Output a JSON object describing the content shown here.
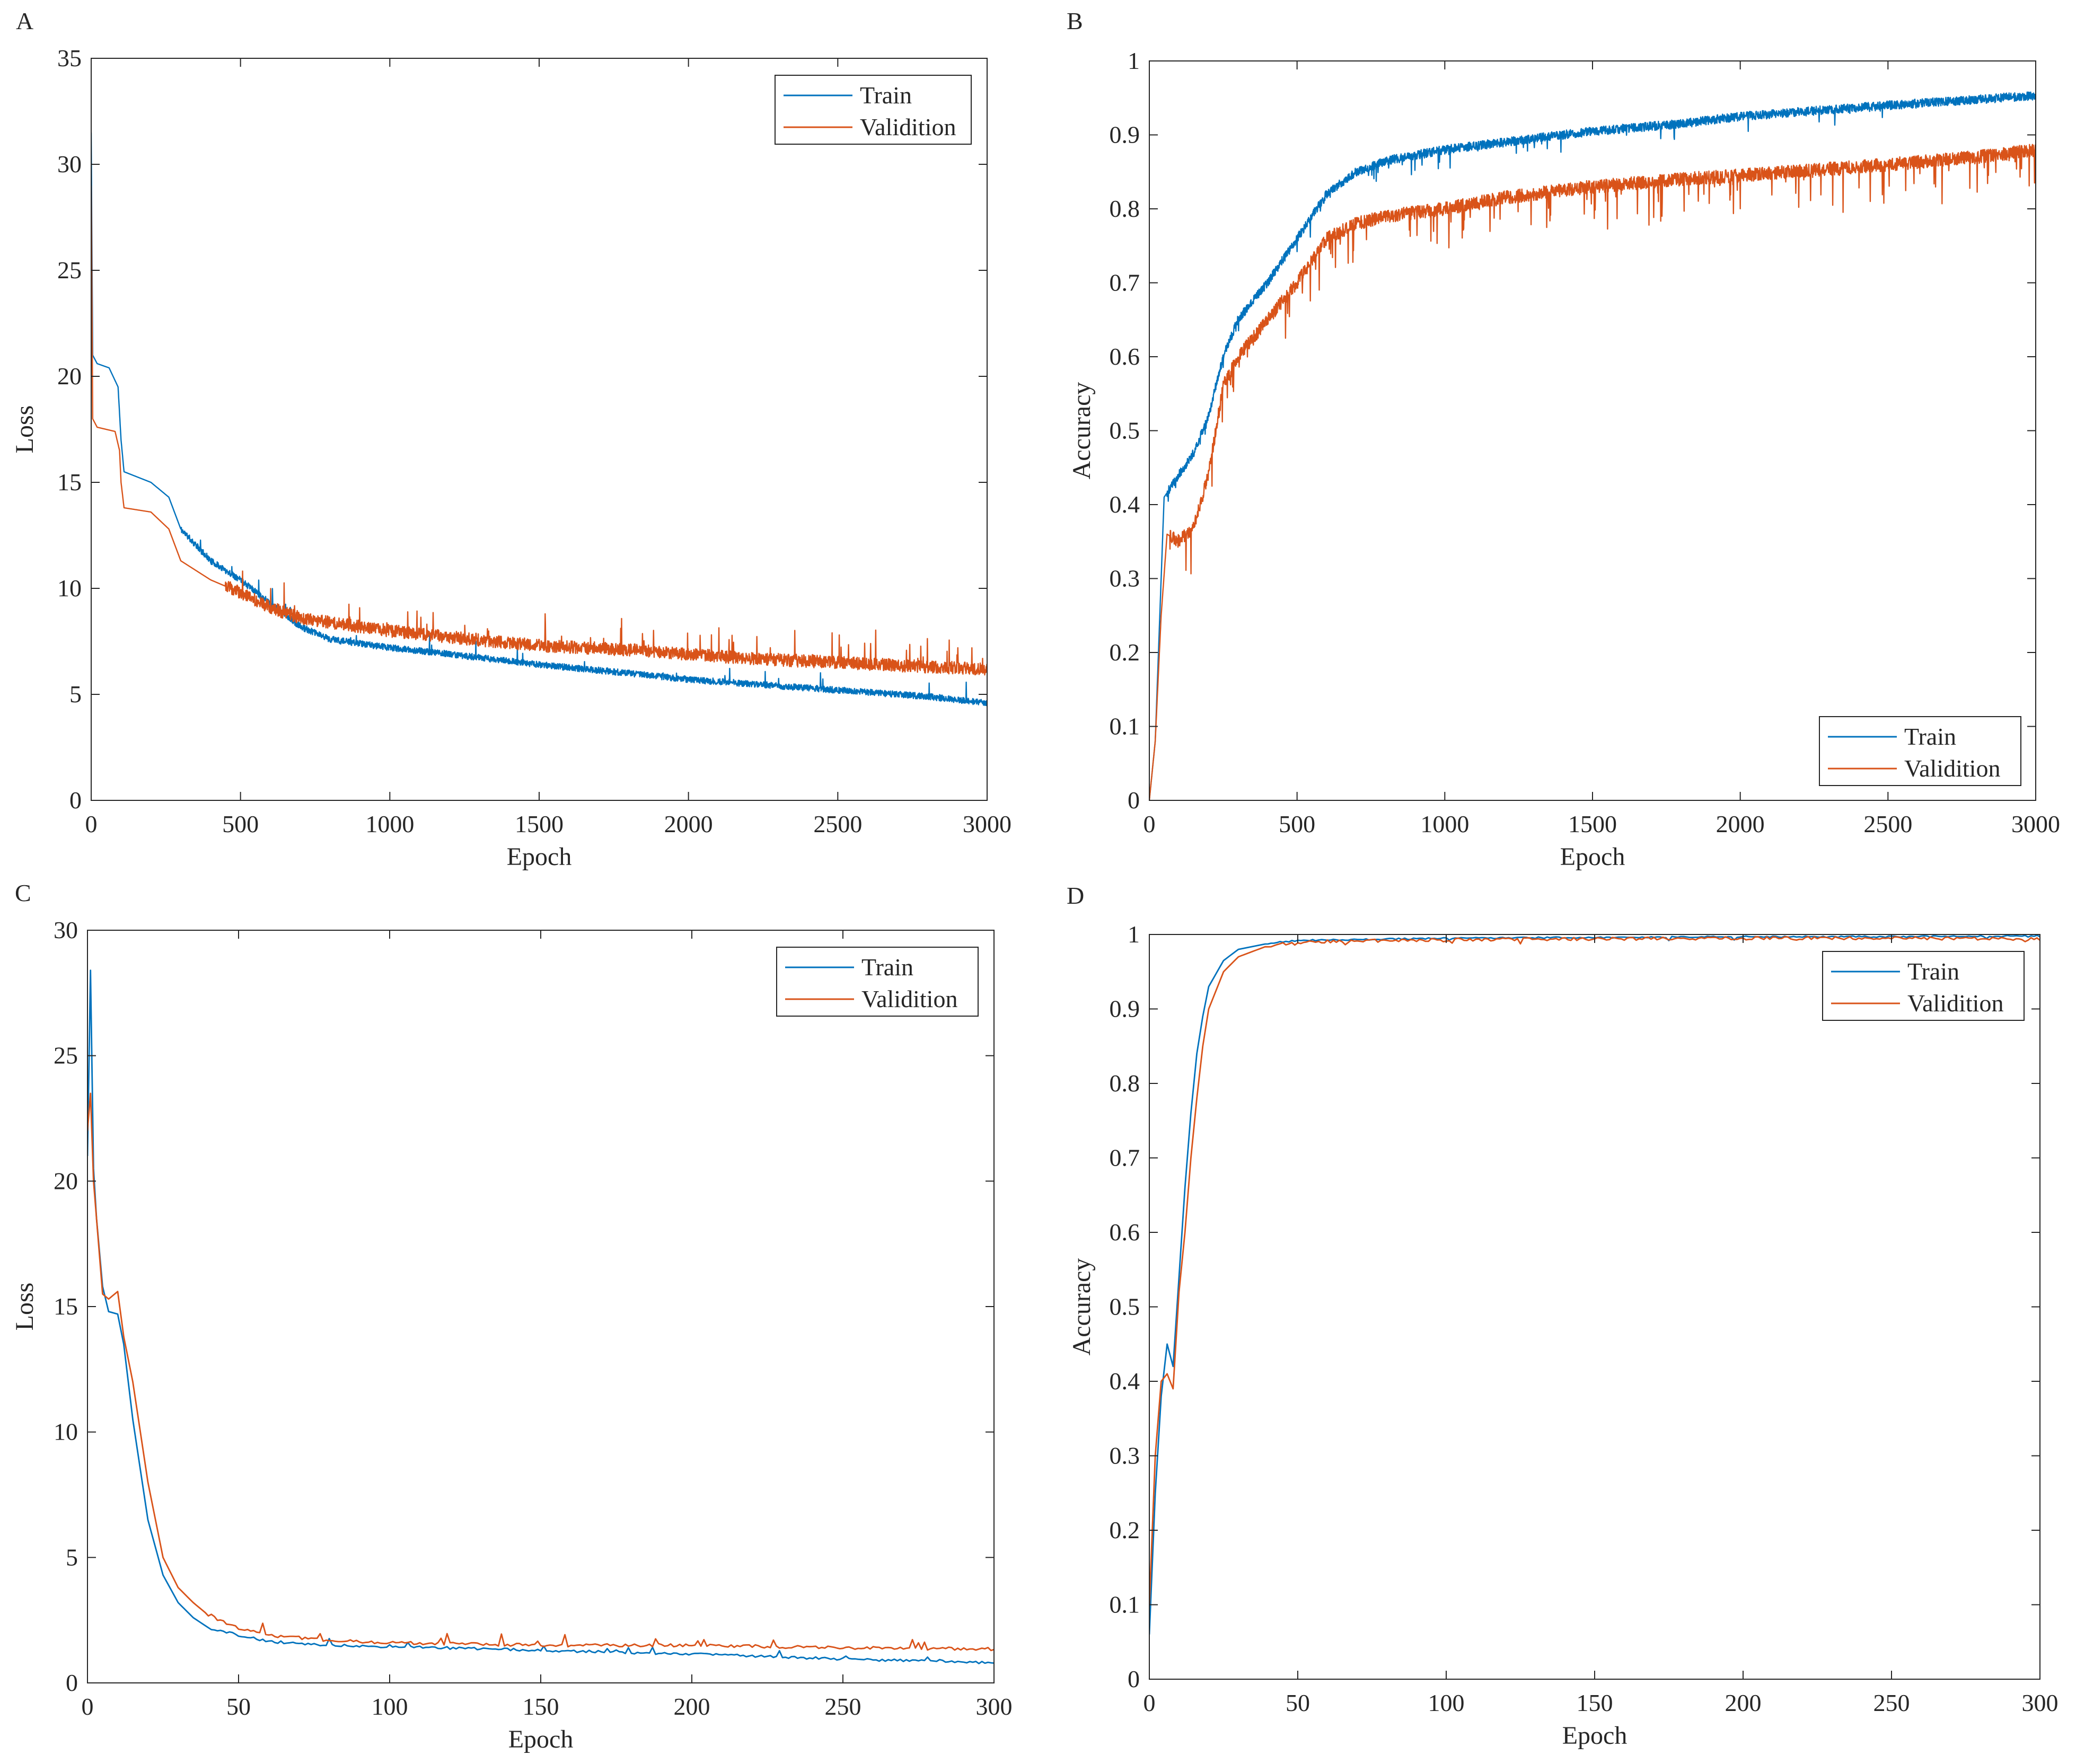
{
  "colors": {
    "train": "#0072BD",
    "validation": "#D95319",
    "axis": "#262626",
    "background": "#ffffff"
  },
  "chart_data": [
    {
      "panel": "A",
      "type": "line",
      "title": "",
      "xlabel": "Epoch",
      "ylabel": "Loss",
      "xlim": [
        0,
        3000
      ],
      "ylim": [
        0,
        35
      ],
      "xticks": [
        0,
        500,
        1000,
        1500,
        2000,
        2500,
        3000
      ],
      "yticks": [
        0,
        5,
        10,
        15,
        20,
        25,
        30,
        35
      ],
      "legend_position": "top-right",
      "noise_scale": 1,
      "noise_seed": 11,
      "series": [
        {
          "name": "Train",
          "color_key": "train",
          "x": [
            0,
            5,
            20,
            60,
            90,
            100,
            110,
            200,
            260,
            300,
            400,
            500,
            600,
            700,
            800,
            1000,
            1200,
            1500,
            1800,
            2000,
            2200,
            2500,
            2800,
            3000
          ],
          "y": [
            31.5,
            21,
            20.6,
            20.4,
            19.5,
            17.0,
            15.5,
            15.0,
            14.3,
            12.8,
            11.3,
            10.4,
            9.3,
            8.2,
            7.6,
            7.2,
            6.9,
            6.4,
            6.0,
            5.7,
            5.5,
            5.2,
            4.9,
            4.6
          ],
          "noise": {
            "amp": 0.15,
            "spike_prob": 0.012,
            "spike_amp": 0.9,
            "spike_dir": 1,
            "start": 300
          }
        },
        {
          "name": "Validition",
          "color_key": "validation",
          "x": [
            0,
            5,
            20,
            80,
            95,
            100,
            110,
            200,
            260,
            300,
            400,
            500,
            600,
            700,
            800,
            1000,
            1200,
            1500,
            1800,
            2000,
            2200,
            2500,
            2800,
            3000
          ],
          "y": [
            29,
            18,
            17.6,
            17.4,
            16.5,
            15.0,
            13.8,
            13.6,
            12.8,
            11.3,
            10.4,
            9.8,
            9.1,
            8.6,
            8.4,
            8.0,
            7.7,
            7.3,
            7.1,
            6.9,
            6.7,
            6.5,
            6.3,
            6.2
          ],
          "noise": {
            "amp": 0.3,
            "spike_prob": 0.03,
            "spike_amp": 1.4,
            "spike_dir": 1,
            "start": 450
          }
        }
      ]
    },
    {
      "panel": "B",
      "type": "line",
      "title": "",
      "xlabel": "Epoch",
      "ylabel": "Accuracy",
      "xlim": [
        0,
        3000
      ],
      "ylim": [
        0,
        1
      ],
      "xticks": [
        0,
        500,
        1000,
        1500,
        2000,
        2500,
        3000
      ],
      "yticks": [
        0,
        0.1,
        0.2,
        0.3,
        0.4,
        0.5,
        0.6,
        0.7,
        0.8,
        0.9,
        1
      ],
      "legend_position": "bottom-right",
      "noise_scale": 1,
      "noise_seed": 23,
      "series": [
        {
          "name": "Train",
          "color_key": "train",
          "x": [
            0,
            20,
            40,
            50,
            100,
            150,
            200,
            250,
            300,
            400,
            500,
            600,
            700,
            800,
            1000,
            1200,
            1500,
            1800,
            2000,
            2500,
            2800,
            3000
          ],
          "y": [
            0.0,
            0.08,
            0.3,
            0.41,
            0.44,
            0.47,
            0.52,
            0.6,
            0.65,
            0.7,
            0.76,
            0.82,
            0.85,
            0.865,
            0.88,
            0.89,
            0.905,
            0.915,
            0.925,
            0.94,
            0.948,
            0.953
          ],
          "noise": {
            "amp": 0.006,
            "spike_prob": 0.02,
            "spike_amp": 0.025,
            "spike_dir": -1,
            "start": 60
          }
        },
        {
          "name": "Validition",
          "color_key": "validation",
          "x": [
            0,
            20,
            40,
            60,
            100,
            150,
            200,
            250,
            300,
            400,
            500,
            600,
            700,
            800,
            1000,
            1200,
            1500,
            1800,
            2000,
            2500,
            2800,
            3000
          ],
          "y": [
            0.0,
            0.08,
            0.25,
            0.36,
            0.35,
            0.37,
            0.44,
            0.56,
            0.6,
            0.65,
            0.7,
            0.76,
            0.78,
            0.79,
            0.8,
            0.815,
            0.83,
            0.84,
            0.845,
            0.86,
            0.87,
            0.88
          ],
          "noise": {
            "amp": 0.009,
            "spike_prob": 0.04,
            "spike_amp": 0.055,
            "spike_dir": -1,
            "start": 70
          }
        }
      ]
    },
    {
      "panel": "C",
      "type": "line",
      "title": "",
      "xlabel": "Epoch",
      "ylabel": "Loss",
      "xlim": [
        0,
        300
      ],
      "ylim": [
        0,
        30
      ],
      "xticks": [
        0,
        50,
        100,
        150,
        200,
        250,
        300
      ],
      "yticks": [
        0,
        5,
        10,
        15,
        20,
        25,
        30
      ],
      "legend_position": "top-right",
      "noise_scale": 1,
      "noise_seed": 37,
      "series": [
        {
          "name": "Train",
          "color_key": "train",
          "x": [
            0,
            1,
            2,
            3,
            5,
            7,
            10,
            12,
            15,
            20,
            25,
            30,
            35,
            40,
            50,
            60,
            80,
            100,
            150,
            200,
            250,
            300
          ],
          "y": [
            21,
            28.4,
            20.5,
            18.5,
            15.8,
            14.8,
            14.7,
            13.5,
            10.5,
            6.5,
            4.3,
            3.2,
            2.6,
            2.2,
            1.9,
            1.65,
            1.5,
            1.45,
            1.3,
            1.15,
            0.95,
            0.8
          ],
          "noise": {
            "amp": 0.05,
            "spike_prob": 0.05,
            "spike_amp": 0.3,
            "spike_dir": 1,
            "start": 40
          }
        },
        {
          "name": "Validition",
          "color_key": "validation",
          "x": [
            0,
            1,
            2,
            3,
            5,
            7,
            10,
            12,
            15,
            20,
            25,
            30,
            35,
            40,
            50,
            60,
            80,
            100,
            150,
            200,
            250,
            300
          ],
          "y": [
            22,
            23.5,
            20,
            18.5,
            15.5,
            15.3,
            15.6,
            13.8,
            12.0,
            8.0,
            5.0,
            3.8,
            3.2,
            2.7,
            2.2,
            1.9,
            1.7,
            1.6,
            1.5,
            1.5,
            1.4,
            1.35
          ],
          "noise": {
            "amp": 0.06,
            "spike_prob": 0.06,
            "spike_amp": 0.4,
            "spike_dir": 1,
            "start": 40
          }
        }
      ]
    },
    {
      "panel": "D",
      "type": "line",
      "title": "",
      "xlabel": "Epoch",
      "ylabel": "Accuracy",
      "xlim": [
        0,
        300
      ],
      "ylim": [
        0,
        1
      ],
      "xticks": [
        0,
        50,
        100,
        150,
        200,
        250,
        300
      ],
      "yticks": [
        0,
        0.1,
        0.2,
        0.3,
        0.4,
        0.5,
        0.6,
        0.7,
        0.8,
        0.9,
        1
      ],
      "legend_position": "top-right",
      "noise_scale": 1,
      "noise_seed": 51,
      "series": [
        {
          "name": "Train",
          "color_key": "train",
          "x": [
            0,
            2,
            4,
            6,
            8,
            10,
            12,
            14,
            16,
            18,
            20,
            25,
            30,
            40,
            50,
            100,
            150,
            200,
            250,
            300
          ],
          "y": [
            0.06,
            0.25,
            0.38,
            0.45,
            0.42,
            0.54,
            0.66,
            0.76,
            0.84,
            0.89,
            0.93,
            0.965,
            0.98,
            0.988,
            0.992,
            0.995,
            0.996,
            0.997,
            0.997,
            0.998
          ],
          "noise": {
            "amp": 0.001,
            "spike_prob": 0.03,
            "spike_amp": 0.004,
            "spike_dir": -1,
            "start": 40
          }
        },
        {
          "name": "Validition",
          "color_key": "validation",
          "x": [
            0,
            2,
            4,
            6,
            8,
            10,
            12,
            14,
            16,
            18,
            20,
            25,
            30,
            40,
            50,
            100,
            150,
            200,
            250,
            300
          ],
          "y": [
            0.1,
            0.3,
            0.4,
            0.41,
            0.39,
            0.52,
            0.6,
            0.7,
            0.78,
            0.85,
            0.9,
            0.95,
            0.97,
            0.985,
            0.99,
            0.993,
            0.994,
            0.995,
            0.995,
            0.994
          ],
          "noise": {
            "amp": 0.002,
            "spike_prob": 0.04,
            "spike_amp": 0.006,
            "spike_dir": -1,
            "start": 40
          }
        }
      ]
    }
  ]
}
